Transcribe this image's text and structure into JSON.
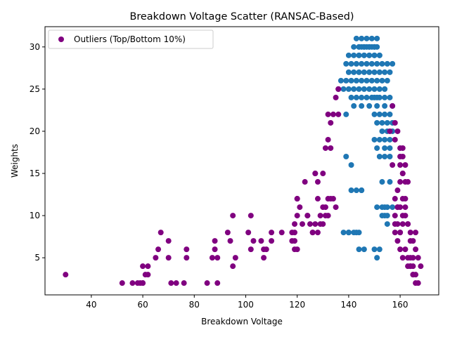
{
  "chart_data": {
    "type": "scatter",
    "title": "Breakdown Voltage Scatter (RANSAC-Based)",
    "xlabel": "Breakdown Voltage",
    "ylabel": "Weights",
    "xlim": [
      22,
      175
    ],
    "ylim": [
      0.6,
      32.4
    ],
    "xticks": [
      40,
      60,
      80,
      100,
      120,
      140,
      160
    ],
    "yticks": [
      5,
      10,
      15,
      20,
      25,
      30
    ],
    "grid": false,
    "legend": {
      "position": "top-left",
      "entries": [
        "Outliers (Top/Bottom 10%)"
      ]
    },
    "series": [
      {
        "name": "",
        "color": "#1f77b4",
        "x": [
          137,
          139,
          141,
          143,
          145,
          147,
          149,
          151,
          153,
          155,
          140,
          142,
          144,
          146,
          148,
          150,
          152,
          154,
          156,
          139,
          141,
          143,
          145,
          147,
          149,
          151,
          153,
          155,
          157,
          140,
          142,
          144,
          146,
          148,
          150,
          152,
          138,
          140,
          142,
          144,
          146,
          148,
          150,
          152,
          154,
          141,
          143,
          145,
          147,
          149,
          151,
          142,
          144,
          146,
          148,
          150,
          143,
          145,
          147,
          149,
          151,
          144,
          146,
          148,
          150,
          152,
          145,
          147,
          149,
          151,
          144,
          146,
          148,
          150,
          150,
          152,
          154,
          156,
          139,
          142,
          145,
          148,
          151,
          154,
          157,
          150,
          152,
          154,
          156,
          153,
          155,
          157,
          151,
          153,
          155,
          157,
          151,
          154,
          156,
          150,
          152,
          154,
          156,
          152,
          154,
          156,
          153,
          156,
          154,
          155,
          138,
          140,
          142,
          139,
          141,
          143,
          145,
          145,
          140,
          143,
          141,
          151,
          153,
          155,
          157,
          153,
          155,
          154,
          144,
          146,
          150,
          152,
          151,
          140,
          144
        ],
        "y": [
          26,
          26,
          26,
          26,
          26,
          26,
          26,
          26,
          26,
          26,
          27,
          27,
          27,
          27,
          27,
          27,
          27,
          27,
          27,
          28,
          28,
          28,
          28,
          28,
          28,
          28,
          28,
          28,
          28,
          29,
          29,
          29,
          29,
          29,
          29,
          29,
          25,
          25,
          25,
          25,
          25,
          25,
          25,
          25,
          25,
          24,
          24,
          24,
          24,
          24,
          24,
          30,
          30,
          30,
          30,
          30,
          31,
          31,
          31,
          31,
          31,
          29,
          29,
          29,
          29,
          29,
          30,
          30,
          30,
          30,
          30,
          30,
          30,
          30,
          22,
          22,
          22,
          22,
          22,
          23,
          23,
          23,
          23,
          23,
          23,
          19,
          19,
          19,
          19,
          20,
          20,
          20,
          21,
          21,
          21,
          21,
          18,
          18,
          18,
          24,
          24,
          24,
          24,
          17,
          17,
          17,
          14,
          14,
          10,
          9,
          8,
          8,
          8,
          17,
          16,
          13,
          13,
          13,
          8,
          8,
          13,
          11,
          11,
          11,
          11,
          10,
          10,
          11,
          6,
          6,
          6,
          6,
          5,
          8,
          8
        ]
      },
      {
        "name": "Outliers (Top/Bottom 10%)",
        "color": "#800080",
        "x": [
          30,
          52,
          56,
          58,
          60,
          61,
          60,
          62,
          59,
          60,
          62,
          65,
          66,
          67,
          70,
          70,
          71,
          73,
          76,
          77,
          77,
          85,
          87,
          88,
          88,
          89,
          89,
          93,
          94,
          95,
          95,
          96,
          101,
          102,
          102,
          103,
          106,
          107,
          107,
          108,
          110,
          110,
          114,
          118,
          119,
          119,
          120,
          120,
          121,
          123,
          124,
          125,
          126,
          127,
          128,
          128,
          130,
          130,
          131,
          131,
          132,
          132,
          133,
          134,
          135,
          136,
          136,
          136,
          133,
          131,
          132,
          127,
          128,
          127,
          129,
          133,
          134,
          135,
          130,
          132,
          129,
          126,
          124,
          122,
          120,
          119,
          119,
          118,
          120,
          158,
          159,
          160,
          161,
          160,
          161,
          162,
          163,
          158,
          160,
          159,
          161,
          162,
          163,
          164,
          165,
          162,
          163,
          164,
          165,
          166,
          164,
          165,
          166,
          167,
          163,
          165,
          166,
          167,
          168,
          159,
          160,
          161,
          162,
          160,
          161,
          158,
          160,
          162,
          158,
          159,
          160,
          161,
          162,
          164,
          166,
          157,
          158,
          159,
          161,
          163,
          165,
          156,
          157,
          164,
          161,
          160,
          159,
          158
        ],
        "y": [
          3,
          2,
          2,
          2,
          2,
          3,
          4,
          4,
          2,
          2,
          3,
          5,
          6,
          8,
          5,
          7,
          2,
          2,
          2,
          5,
          6,
          2,
          5,
          7,
          6,
          5,
          2,
          8,
          7,
          4,
          10,
          5,
          8,
          6,
          10,
          7,
          7,
          6,
          5,
          6,
          7,
          8,
          8,
          7,
          6,
          9,
          10,
          12,
          11,
          14,
          10,
          9,
          8,
          15,
          14,
          12,
          15,
          11,
          10,
          18,
          19,
          22,
          21,
          22,
          24,
          25,
          25,
          22,
          12,
          11,
          12,
          9,
          8,
          15,
          10,
          18,
          12,
          11,
          9,
          10,
          9,
          8,
          10,
          9,
          6,
          7,
          8,
          8,
          12,
          21,
          20,
          18,
          17,
          16,
          15,
          14,
          14,
          9,
          8,
          11,
          12,
          10,
          9,
          8,
          7,
          6,
          5,
          5,
          4,
          3,
          4,
          3,
          2,
          2,
          4,
          5,
          6,
          5,
          4,
          13,
          14,
          15,
          16,
          17,
          18,
          19,
          11,
          12,
          10,
          9,
          8,
          10,
          11,
          7,
          8,
          16,
          12,
          11,
          9,
          9,
          3,
          20,
          23,
          4,
          5,
          6,
          7,
          8
        ]
      }
    ]
  }
}
